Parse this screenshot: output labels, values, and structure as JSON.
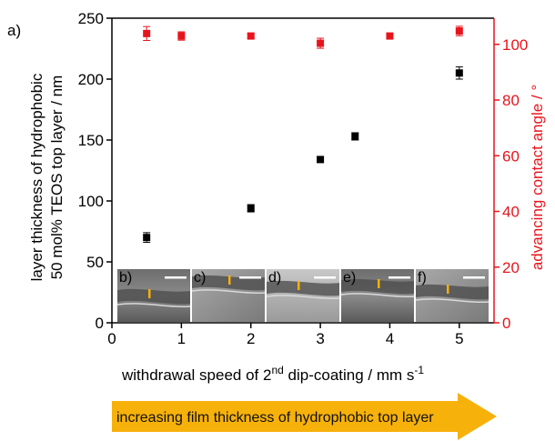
{
  "panel_label": "a)",
  "arrow_text": "increasing film thickness of hydrophobic top layer",
  "colors": {
    "left_series": "#000000",
    "right_series": "#e8141c",
    "right_axis": "#e8141c",
    "arrow": "#f7b10b",
    "scale_bar": "#ffffff",
    "thickness_marker": "#f7b10b"
  },
  "chart_data": {
    "type": "scatter",
    "xlabel": {
      "main": "withdrawal speed of 2",
      "sup1": "nd",
      "rest": " dip-coating / mm s",
      "sup2": "-1"
    },
    "ylabel_left": [
      "layer thickness of hydrophobic",
      "50 mol% TEOS top layer / nm"
    ],
    "ylabel_right": "advancing contact angle / °",
    "xlim": [
      0,
      5.5
    ],
    "ylim_left": [
      0,
      250
    ],
    "ylim_right": [
      0,
      109.4
    ],
    "x_ticks": [
      0,
      1,
      2,
      3,
      4,
      5
    ],
    "y_ticks_left": [
      0,
      50,
      100,
      150,
      200,
      250
    ],
    "y_ticks_right": [
      0,
      20,
      40,
      60,
      80,
      100
    ],
    "series": [
      {
        "axis": "left",
        "marker": "square",
        "points": [
          {
            "x": 0.5,
            "y": 70,
            "err": 4
          },
          {
            "x": 2.0,
            "y": 94,
            "err": 3
          },
          {
            "x": 3.0,
            "y": 134,
            "err": 2
          },
          {
            "x": 3.5,
            "y": 153,
            "err": 3
          },
          {
            "x": 5.0,
            "y": 205,
            "err": 5
          }
        ]
      },
      {
        "axis": "right",
        "marker": "square",
        "points": [
          {
            "x": 0.5,
            "y": 103.9,
            "err": 2.5
          },
          {
            "x": 1.0,
            "y": 103.0,
            "err": 1.5
          },
          {
            "x": 2.0,
            "y": 103.0,
            "err": 0.8
          },
          {
            "x": 3.0,
            "y": 100.4,
            "err": 1.8
          },
          {
            "x": 4.0,
            "y": 103.0,
            "err": 0.8
          },
          {
            "x": 5.0,
            "y": 104.8,
            "err": 1.7
          }
        ]
      }
    ],
    "insets": [
      {
        "label": "b)"
      },
      {
        "label": "c)"
      },
      {
        "label": "d)"
      },
      {
        "label": "e)"
      },
      {
        "label": "f)"
      }
    ]
  }
}
